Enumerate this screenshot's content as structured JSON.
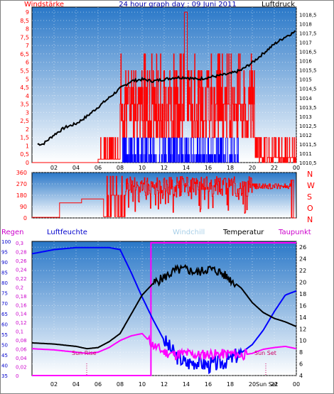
{
  "colors": {
    "wind_gust": "#ff0000",
    "wind_avg": "#0000ff",
    "pressure": "#000000",
    "direction": "#ff0000",
    "humidity": "#0000ff",
    "rain": "#ff00ff",
    "temperature": "#000000",
    "windchill": "#add8e6",
    "dewpoint": "#ff00ff",
    "bg_top": "#2a78c8",
    "bg_bottom": "#ffffff"
  },
  "chart_data": [
    {
      "type": "line",
      "title": "24 hour graph day : 09 Juni 2011",
      "left_label": "Windstärke",
      "right_label": "Luftdruck",
      "x_ticks": [
        "02",
        "04",
        "06",
        "08",
        "10",
        "12",
        "14",
        "16",
        "18",
        "20",
        "22",
        "00"
      ],
      "y_left_ticks": [
        "0",
        "0,5",
        "1",
        "1,5",
        "2",
        "2,5",
        "3",
        "3,5",
        "4",
        "4,5",
        "5",
        "5,5",
        "6",
        "6,5",
        "7",
        "7,5",
        "8",
        "8,5",
        "9"
      ],
      "y_right_ticks": [
        "1010,5",
        "1011",
        "1011,5",
        "1012",
        "1012,5",
        "1013",
        "1013,5",
        "1014",
        "1014,5",
        "1015",
        "1015,5",
        "1016",
        "1016,5",
        "1017",
        "1017,5",
        "1018",
        "1018,5"
      ],
      "ylim_left": [
        0,
        9.3
      ],
      "ylim_right": [
        1010.5,
        1018.9
      ],
      "pressure_series": {
        "hours": [
          1,
          2,
          3,
          4,
          5,
          6,
          7,
          8,
          9,
          10,
          11,
          12,
          13,
          14,
          15,
          16,
          17,
          18,
          19,
          20,
          21,
          22,
          23,
          24
        ],
        "values": [
          1011.5,
          1012.0,
          1012.4,
          1012.6,
          1013.0,
          1013.5,
          1014.0,
          1014.5,
          1014.9,
          1015.0,
          1014.9,
          1015.0,
          1015.1,
          1015.1,
          1015.0,
          1015.1,
          1015.2,
          1015.3,
          1015.5,
          1015.9,
          1016.4,
          1016.9,
          1017.3,
          1017.6
        ]
      },
      "gust_summary": "wind gusts mostly 0–6 between 08 and 20 h, max 9",
      "avg_summary": "average wind 0–2 between 08 and 20 h"
    },
    {
      "type": "line",
      "title": "",
      "y_left_ticks": [
        "0",
        "90",
        "180",
        "270",
        "360"
      ],
      "right_labels": [
        "N",
        "W",
        "S",
        "O",
        "N"
      ],
      "ylim": [
        0,
        360
      ],
      "direction_summary": "wind direction 0–360°, mostly 180–300° after 08 h"
    },
    {
      "type": "line",
      "title": "",
      "legend": [
        "Regen",
        "Luftfeuchte",
        "Windchill",
        "Temperatur",
        "Taupunkt"
      ],
      "x_ticks": [
        "02",
        "04",
        "06",
        "08",
        "10",
        "12",
        "14",
        "16",
        "18",
        "20",
        "22",
        "00"
      ],
      "y_rain_ticks": [
        "0",
        "0,02",
        "0,04",
        "0,06",
        "0,08",
        "0,1",
        "0,12",
        "0,14",
        "0,16",
        "0,18",
        "0,2",
        "0,22",
        "0,24",
        "0,26",
        "0,28",
        "0,3"
      ],
      "y_humidity_ticks": [
        "35",
        "40",
        "45",
        "50",
        "55",
        "60",
        "65",
        "70",
        "75",
        "80",
        "85",
        "90",
        "95",
        "100"
      ],
      "y_temp_ticks": [
        "4",
        "6",
        "8",
        "10",
        "12",
        "14",
        "16",
        "18",
        "20",
        "22",
        "24",
        "26"
      ],
      "ylim_humidity": [
        35,
        100
      ],
      "ylim_temp": [
        4,
        27
      ],
      "annotations": [
        "Sun Rise",
        "Sun Set",
        "Sun Set"
      ],
      "humidity_series": {
        "hours": [
          0,
          2,
          4,
          6,
          7,
          8,
          9,
          10,
          11,
          12,
          13,
          14,
          15,
          16,
          17,
          18,
          19,
          20,
          21,
          22,
          23,
          24
        ],
        "values": [
          94,
          96,
          97,
          97,
          97,
          96,
          85,
          73,
          62,
          52,
          45,
          41,
          42,
          40,
          41,
          43,
          46,
          50,
          57,
          66,
          74,
          76
        ]
      },
      "temperature_series": {
        "hours": [
          0,
          2,
          4,
          5,
          6,
          7,
          8,
          9,
          10,
          11,
          12,
          13,
          14,
          15,
          16,
          17,
          18,
          19,
          20,
          21,
          22,
          23,
          24
        ],
        "values": [
          9.6,
          9.4,
          9.0,
          8.6,
          8.8,
          9.8,
          11.2,
          14.5,
          17.8,
          19.8,
          20.8,
          22.0,
          22.2,
          21.6,
          22.3,
          21.8,
          20.5,
          19.0,
          16.5,
          14.8,
          13.8,
          13.2,
          12.4
        ]
      },
      "dewpoint_series": {
        "hours": [
          0,
          2,
          4,
          5,
          6,
          7,
          8,
          9,
          10,
          11,
          12,
          13,
          14,
          15,
          16,
          17,
          18,
          19,
          20,
          21,
          22,
          23,
          24
        ],
        "values": [
          8.6,
          8.4,
          8.0,
          7.8,
          8.0,
          8.8,
          10.0,
          10.8,
          11.2,
          9.2,
          8.0,
          7.6,
          7.8,
          7.5,
          7.7,
          7.6,
          7.8,
          7.5,
          7.8,
          8.5,
          8.8,
          9.0,
          8.6
        ]
      },
      "rain_series": {
        "hours": [
          0,
          10.8,
          10.8,
          24
        ],
        "values": [
          0,
          0,
          0.3,
          0.3
        ]
      }
    }
  ]
}
